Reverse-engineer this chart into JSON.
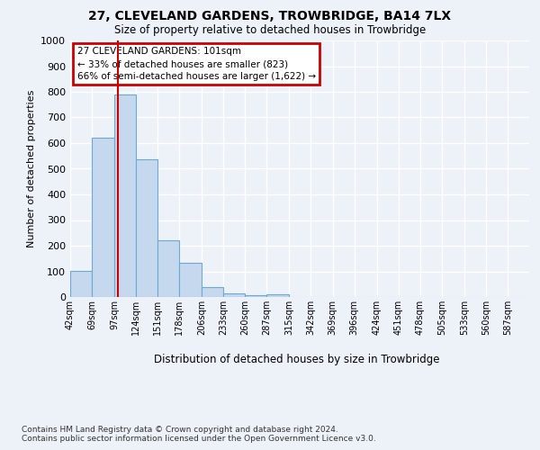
{
  "title": "27, CLEVELAND GARDENS, TROWBRIDGE, BA14 7LX",
  "subtitle": "Size of property relative to detached houses in Trowbridge",
  "xlabel": "Distribution of detached houses by size in Trowbridge",
  "ylabel": "Number of detached properties",
  "bar_color": "#c5d8ee",
  "bar_edge_color": "#6aaad4",
  "vline_color": "#cc0000",
  "vline_x": 101,
  "categories": [
    "42sqm",
    "69sqm",
    "97sqm",
    "124sqm",
    "151sqm",
    "178sqm",
    "206sqm",
    "233sqm",
    "260sqm",
    "287sqm",
    "315sqm",
    "342sqm",
    "369sqm",
    "396sqm",
    "424sqm",
    "451sqm",
    "478sqm",
    "505sqm",
    "533sqm",
    "560sqm",
    "587sqm"
  ],
  "bin_edges": [
    42,
    69,
    97,
    124,
    151,
    178,
    206,
    233,
    260,
    287,
    315,
    342,
    369,
    396,
    424,
    451,
    478,
    505,
    533,
    560,
    587,
    614
  ],
  "values": [
    103,
    622,
    790,
    538,
    222,
    132,
    40,
    15,
    8,
    12,
    0,
    0,
    0,
    0,
    0,
    0,
    0,
    0,
    0,
    0,
    0
  ],
  "ylim": [
    0,
    1000
  ],
  "yticks": [
    0,
    100,
    200,
    300,
    400,
    500,
    600,
    700,
    800,
    900,
    1000
  ],
  "annotation_text": "27 CLEVELAND GARDENS: 101sqm\n← 33% of detached houses are smaller (823)\n66% of semi-detached houses are larger (1,622) →",
  "annotation_box_facecolor": "#ffffff",
  "annotation_box_edgecolor": "#cc0000",
  "footer_text": "Contains HM Land Registry data © Crown copyright and database right 2024.\nContains public sector information licensed under the Open Government Licence v3.0.",
  "background_color": "#edf2f9",
  "grid_color": "#ffffff"
}
